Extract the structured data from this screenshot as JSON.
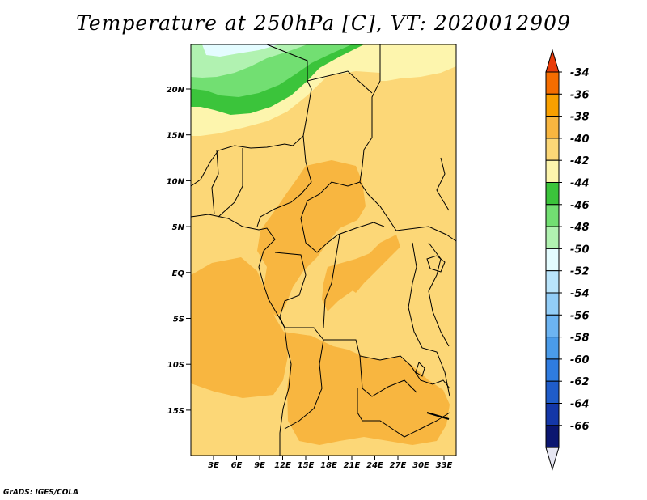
{
  "title": "Temperature at 250hPa [C], VT: 2020012909",
  "credit": "GrADS: IGES/COLA",
  "map": {
    "lat_labels": [
      "20N",
      "15N",
      "10N",
      "5N",
      "EQ",
      "5S",
      "10S",
      "15S"
    ],
    "lon_labels": [
      "3E",
      "6E",
      "9E",
      "12E",
      "15E",
      "18E",
      "21E",
      "24E",
      "27E",
      "30E",
      "33E"
    ]
  },
  "colorbar": {
    "labels": [
      "-34",
      "-36",
      "-38",
      "-40",
      "-42",
      "-44",
      "-46",
      "-48",
      "-50",
      "-52",
      "-54",
      "-56",
      "-58",
      "-60",
      "-62",
      "-64",
      "-66"
    ],
    "colors": [
      "#e83c0a",
      "#f56d00",
      "#f9a000",
      "#f8b640",
      "#fcd777",
      "#fdf5ad",
      "#3bc43b",
      "#72df72",
      "#b1f2b1",
      "#e4fcff",
      "#b9e4fb",
      "#92cdf7",
      "#6cb4f2",
      "#4a9be9",
      "#2f7ce0",
      "#1f5cc9",
      "#1437a8",
      "#0b1670",
      "#e6e6f2"
    ]
  }
}
